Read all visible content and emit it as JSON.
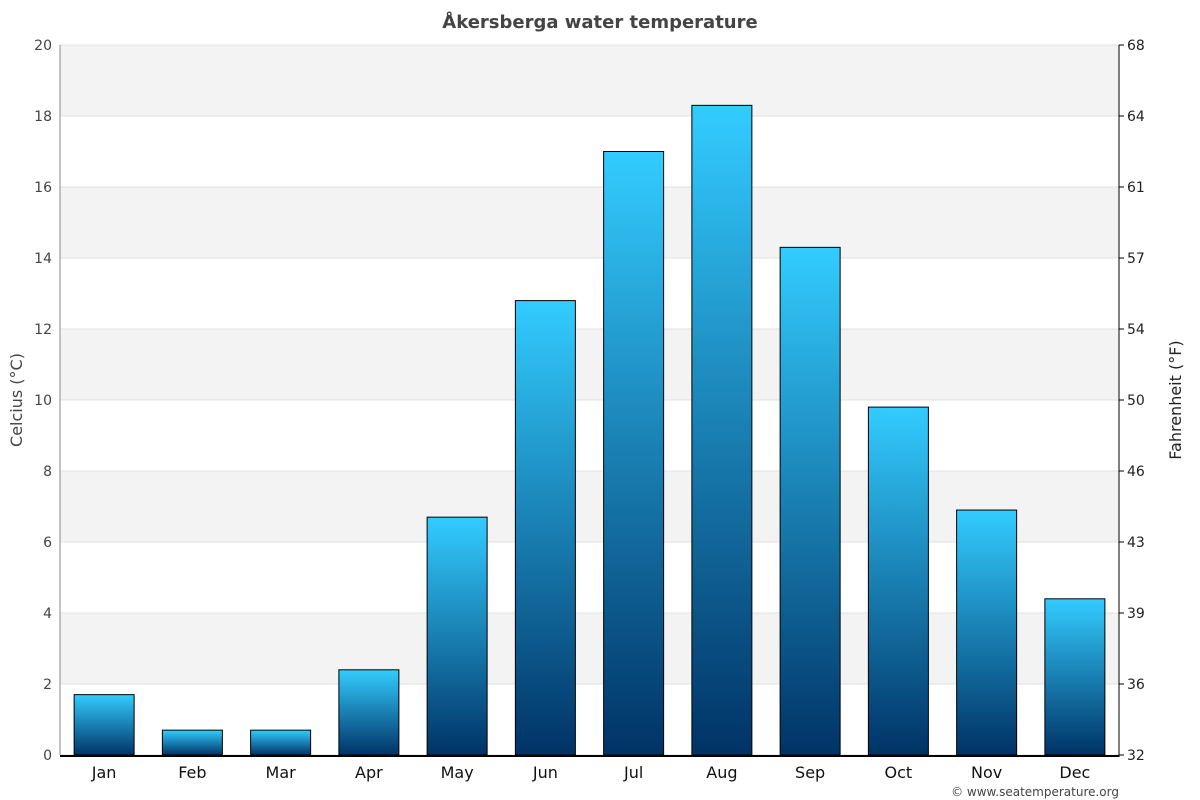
{
  "chart_data": {
    "type": "bar",
    "title": "Åkersberga water temperature",
    "ylabel": "Celcius (°C)",
    "ylabel_right": "Fahrenheit (°F)",
    "categories": [
      "Jan",
      "Feb",
      "Mar",
      "Apr",
      "May",
      "Jun",
      "Jul",
      "Aug",
      "Sep",
      "Oct",
      "Nov",
      "Dec"
    ],
    "values": [
      1.7,
      0.7,
      0.7,
      2.4,
      6.7,
      12.8,
      17.0,
      18.3,
      14.3,
      9.8,
      6.9,
      4.4
    ],
    "ylim": [
      0,
      20
    ],
    "yticks": [
      0,
      2,
      4,
      6,
      8,
      10,
      12,
      14,
      16,
      18,
      20
    ],
    "yticks_right": [
      "32",
      "36",
      "39",
      "43",
      "46",
      "50",
      "54",
      "57",
      "61",
      "64",
      "68"
    ],
    "grid": "horizontal alternating bands",
    "colors": {
      "bar_top": "#33ccff",
      "bar_bottom": "#003366",
      "band": "#f3f3f3",
      "title": "#444444"
    }
  },
  "footer": {
    "credit": "© www.seatemperature.org"
  }
}
